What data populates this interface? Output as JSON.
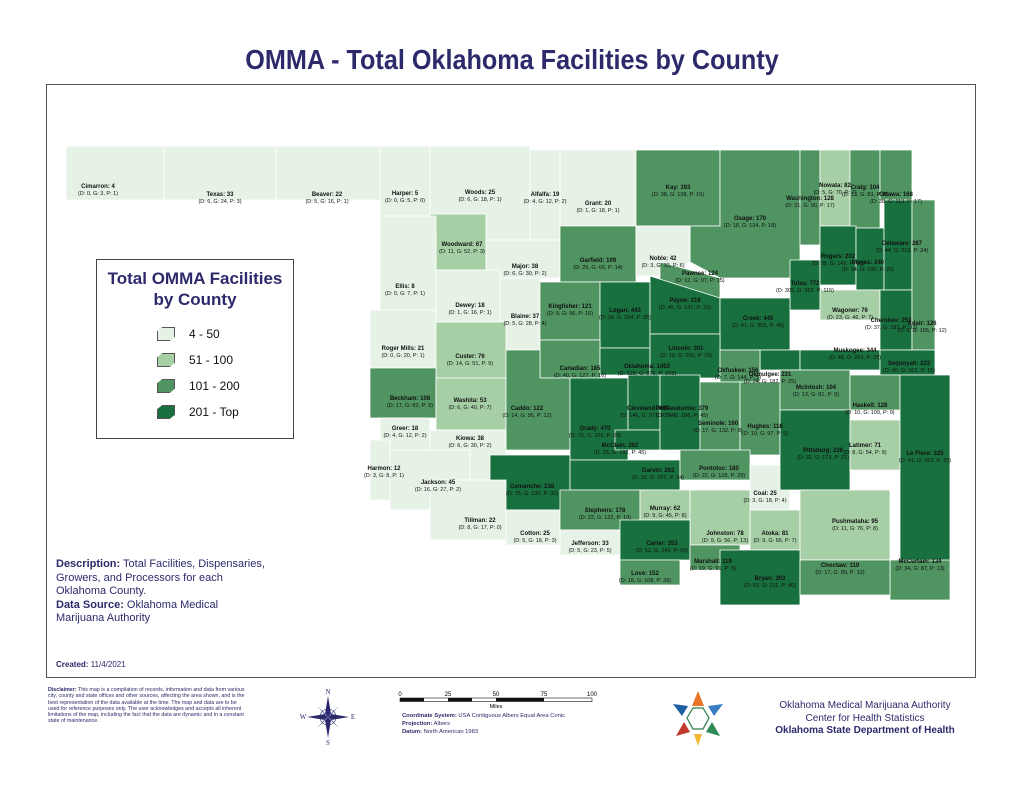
{
  "title": "OMMA - Total Oklahoma Facilities by County",
  "legend": {
    "title_line1": "Total OMMA Facilities",
    "title_line2": "by County",
    "items": [
      {
        "label": "4 - 50",
        "color": "#e6f2e6"
      },
      {
        "label": "51 - 100",
        "color": "#a6cfa6"
      },
      {
        "label": "101 - 200",
        "color": "#4f9461"
      },
      {
        "label": "201 - Top",
        "color": "#19703f"
      }
    ]
  },
  "description": {
    "label": "Description:",
    "text": "Total Facilities, Dispensaries, Growers, and Processors for each Oklahoma County.",
    "source_label": "Data Source:",
    "source_text": "Oklahoma Medical Marijuana Authority"
  },
  "created": {
    "label": "Created:",
    "date": "11/4/2021"
  },
  "disclaimer": {
    "label": "Disclaimer:",
    "text": "This map is a compilation of records, information and data from various city, county and state offices and other sources, affecting the area shown, and is the best representation of the data available at the time. The map and data are to be used for reference purposes only. The user acknowledges and accepts all inherent limitations of the map, including the fact that the data are dynamic and in a constant state of maintenance."
  },
  "compass": {
    "n": "N",
    "s": "S",
    "e": "E",
    "w": "W"
  },
  "scale": {
    "ticks": [
      "0",
      "25",
      "50",
      "75",
      "100"
    ],
    "unit": "Miles",
    "coord_label": "Coordinate System:",
    "coord_value": "USA Contiguous Albers Equal Area Conic",
    "proj_label": "Projection:",
    "proj_value": "Albers",
    "datum_label": "Datum:",
    "datum_value": "North American 1983"
  },
  "org": {
    "line1": "Oklahoma Medical Marijuana Authority",
    "line2": "Center for Health Statistics",
    "line3": "Oklahoma State Department of Health"
  },
  "counties": [
    {
      "name": "Cimarron: 4",
      "detail": "(D: 0, G: 3, P: 1)",
      "cls": 1
    },
    {
      "name": "Texas: 33",
      "detail": "(D: 6, G: 24, P: 3)",
      "cls": 1
    },
    {
      "name": "Beaver: 22",
      "detail": "(D: 5, G: 16, P: 1)",
      "cls": 1
    },
    {
      "name": "Harper: 5",
      "detail": "(D: 0, G: 5, P: 0)",
      "cls": 1
    },
    {
      "name": "Woods: 25",
      "detail": "(D: 6, G: 18, P: 1)",
      "cls": 1
    },
    {
      "name": "Alfalfa: 19",
      "detail": "(D: 4, G: 12, P: 2)",
      "cls": 1
    },
    {
      "name": "Grant: 20",
      "detail": "(D: 1, G: 18, P: 1)",
      "cls": 1
    },
    {
      "name": "Kay: 193",
      "detail": "(D: 38, G: 138, P: 15)",
      "cls": 3
    },
    {
      "name": "Osage: 170",
      "detail": "(D: 18, G: 134, P: 18)",
      "cls": 3
    },
    {
      "name": "Washington: 128",
      "detail": "(D: 21, G: 90, P: 17)",
      "cls": 3
    },
    {
      "name": "Nowata: 82",
      "detail": "(D: 5, G: 70, P: 7)",
      "cls": 2
    },
    {
      "name": "Craig: 104",
      "detail": "(D: 13, G: 83, P: 8)",
      "cls": 3
    },
    {
      "name": "Ottawa: 168",
      "detail": "(D: 38, G: 113, P: 17)",
      "cls": 3
    },
    {
      "name": "Woodward: 67",
      "detail": "(D: 11, G: 52, P: 3)",
      "cls": 2
    },
    {
      "name": "Major: 38",
      "detail": "(D: 6, G: 30, P: 2)",
      "cls": 1
    },
    {
      "name": "Garfield: 109",
      "detail": "(D: 29, G: 66, P: 14)",
      "cls": 3
    },
    {
      "name": "Noble: 42",
      "detail": "(D: 3, G: 33, P: 6)",
      "cls": 1
    },
    {
      "name": "Pawnee: 124",
      "detail": "(D: 12, G: 97, P: 15)",
      "cls": 3
    },
    {
      "name": "Tulsa: 772",
      "detail": "(D: 305, G: 352, P: 115)",
      "cls": 4
    },
    {
      "name": "Rogers: 202",
      "detail": "(D: 35, G: 149, P: 18)",
      "cls": 4
    },
    {
      "name": "Mayes: 240",
      "detail": "(D: 34, G: 186, P: 20)",
      "cls": 4
    },
    {
      "name": "Delaware: 287",
      "detail": "(D: 44, G: 219, P: 24)",
      "cls": 4
    },
    {
      "name": "Ellis: 8",
      "detail": "(D: 0, G: 7, P: 1)",
      "cls": 1
    },
    {
      "name": "Dewey: 18",
      "detail": "(D: 1, G: 16, P: 1)",
      "cls": 1
    },
    {
      "name": "Blaine: 37",
      "detail": "(D: 5, G: 28, P: 4)",
      "cls": 1
    },
    {
      "name": "Kingfisher: 121",
      "detail": "(D: 9, G: 96, P: 16)",
      "cls": 3
    },
    {
      "name": "Logan: 443",
      "detail": "(D: 34, G: 324, P: 85)",
      "cls": 4
    },
    {
      "name": "Payne: 218",
      "detail": "(D: 45, G: 147, P: 25)",
      "cls": 4
    },
    {
      "name": "Creek: 445",
      "detail": "(D: 41, G: 355, P: 49)",
      "cls": 4
    },
    {
      "name": "Wagoner: 76",
      "detail": "(D: 23, G: 46, P: 7)",
      "cls": 2
    },
    {
      "name": "Cherokee: 253",
      "detail": "(D: 37, G: 183, P: 32)",
      "cls": 4
    },
    {
      "name": "Adair: 126",
      "detail": "(D: 9, G: 105, P: 12)",
      "cls": 3
    },
    {
      "name": "Roger Mills: 21",
      "detail": "(D: 0, G: 20, P: 1)",
      "cls": 1
    },
    {
      "name": "Custer: 76",
      "detail": "(D: 14, G: 51, P: 9)",
      "cls": 2
    },
    {
      "name": "Canadian: 185",
      "detail": "(D: 40, G: 127, P: 16)",
      "cls": 3
    },
    {
      "name": "Oklahoma: 1453",
      "detail": "(D: 528, G: 575, P: 293)",
      "cls": 4
    },
    {
      "name": "Lincoln: 301",
      "detail": "(D: 19, G: 250, P: 29)",
      "cls": 4
    },
    {
      "name": "Okmulgee: 231",
      "detail": "(D: 24, G: 182, P: 25)",
      "cls": 4
    },
    {
      "name": "Okfuskee: 156",
      "detail": "(D: 7, G: 144, P: 5)",
      "cls": 3
    },
    {
      "name": "Muskogee: 344",
      "detail": "(D: 48, G: 264, P: 29)",
      "cls": 4
    },
    {
      "name": "Sequoyah: 223",
      "detail": "(D: 40, G: 162, P: 15)",
      "cls": 4
    },
    {
      "name": "Beckham: 108",
      "detail": "(D: 17, G: 82, P: 9)",
      "cls": 3
    },
    {
      "name": "Washita: 53",
      "detail": "(D: 6, G: 40, P: 7)",
      "cls": 2
    },
    {
      "name": "Caddo: 122",
      "detail": "(D: 14, G: 95, P: 12)",
      "cls": 3
    },
    {
      "name": "Grady: 470",
      "detail": "(D: 73, G: 326, P: 69)",
      "cls": 4
    },
    {
      "name": "Cleveland: 607",
      "detail": "(D: 146, G: 377, P: 74)",
      "cls": 4
    },
    {
      "name": "McClain: 262",
      "detail": "(D: 25, G: 192, P: 45)",
      "cls": 4
    },
    {
      "name": "Pottawatomie: 379",
      "detail": "(D: 35, G: 296, P: 45)",
      "cls": 4
    },
    {
      "name": "Seminole: 160",
      "detail": "(D: 17, G: 132, P: 8)",
      "cls": 3
    },
    {
      "name": "Hughes: 118",
      "detail": "(D: 10, G: 97, P: 9)",
      "cls": 3
    },
    {
      "name": "McIntosh: 104",
      "detail": "(D: 13, G: 81, P: 9)",
      "cls": 3
    },
    {
      "name": "Haskell: 128",
      "detail": "(D: 10, G: 109, P: 9)",
      "cls": 3
    },
    {
      "name": "Greer: 18",
      "detail": "(D: 4, G: 12, P: 2)",
      "cls": 1
    },
    {
      "name": "Kiowa: 38",
      "detail": "(D: 6, G: 30, P: 2)",
      "cls": 1
    },
    {
      "name": "Harmon: 12",
      "detail": "(D: 3, G: 8, P: 1)",
      "cls": 1
    },
    {
      "name": "Jackson: 45",
      "detail": "(D: 16, G: 27, P: 2)",
      "cls": 1
    },
    {
      "name": "Comanche: 238",
      "detail": "(D: 75, G: 130, P: 32)",
      "cls": 4
    },
    {
      "name": "Garvin: 263",
      "detail": "(D: 32, G: 207, P: 24)",
      "cls": 4
    },
    {
      "name": "Pontotoc: 180",
      "detail": "(D: 22, G: 128, P: 29)",
      "cls": 3
    },
    {
      "name": "Coal: 25",
      "detail": "(D: 3, G: 18, P: 4)",
      "cls": 1
    },
    {
      "name": "Pittsburg: 226",
      "detail": "(D: 32, G: 173, P: 21)",
      "cls": 4
    },
    {
      "name": "Latimer: 71",
      "detail": "(D: 8, G: 54, P: 9)",
      "cls": 2
    },
    {
      "name": "Le Flore: 325",
      "detail": "(D: 41, G: 263, P: 20)",
      "cls": 4
    },
    {
      "name": "Tillman: 22",
      "detail": "(D: 8, G: 17, P: 0)",
      "cls": 1
    },
    {
      "name": "Cotton: 25",
      "detail": "(D: 5, G: 18, P: 3)",
      "cls": 1
    },
    {
      "name": "Stephens: 178",
      "detail": "(D: 23, G: 132, P: 19)",
      "cls": 3
    },
    {
      "name": "Murray: 62",
      "detail": "(D: 9, G: 45, P: 8)",
      "cls": 2
    },
    {
      "name": "Johnston: 78",
      "detail": "(D: 9, G: 56, P: 13)",
      "cls": 2
    },
    {
      "name": "Atoka: 81",
      "detail": "(D: 9, G: 65, P: 7)",
      "cls": 2
    },
    {
      "name": "Pushmataha: 95",
      "detail": "(D: 11, G: 76, P: 8)",
      "cls": 2
    },
    {
      "name": "McCurtain: 134",
      "detail": "(D: 34, G: 87, P: 13)",
      "cls": 3
    },
    {
      "name": "Jefferson: 33",
      "detail": "(D: 5, G: 23, P: 5)",
      "cls": 1
    },
    {
      "name": "Carter: 353",
      "detail": "(D: 53, G: 249, P: 50)",
      "cls": 4
    },
    {
      "name": "Marshall: 119",
      "detail": "(D: 19, G: 91, P: 9)",
      "cls": 3
    },
    {
      "name": "Love: 152",
      "detail": "(D: 18, G: 108, P: 26)",
      "cls": 3
    },
    {
      "name": "Bryan: 303",
      "detail": "(D: 52, G: 211, P: 40)",
      "cls": 4
    },
    {
      "name": "Choctaw: 119",
      "detail": "(D: 17, G: 89, P: 12)",
      "cls": 3
    }
  ]
}
